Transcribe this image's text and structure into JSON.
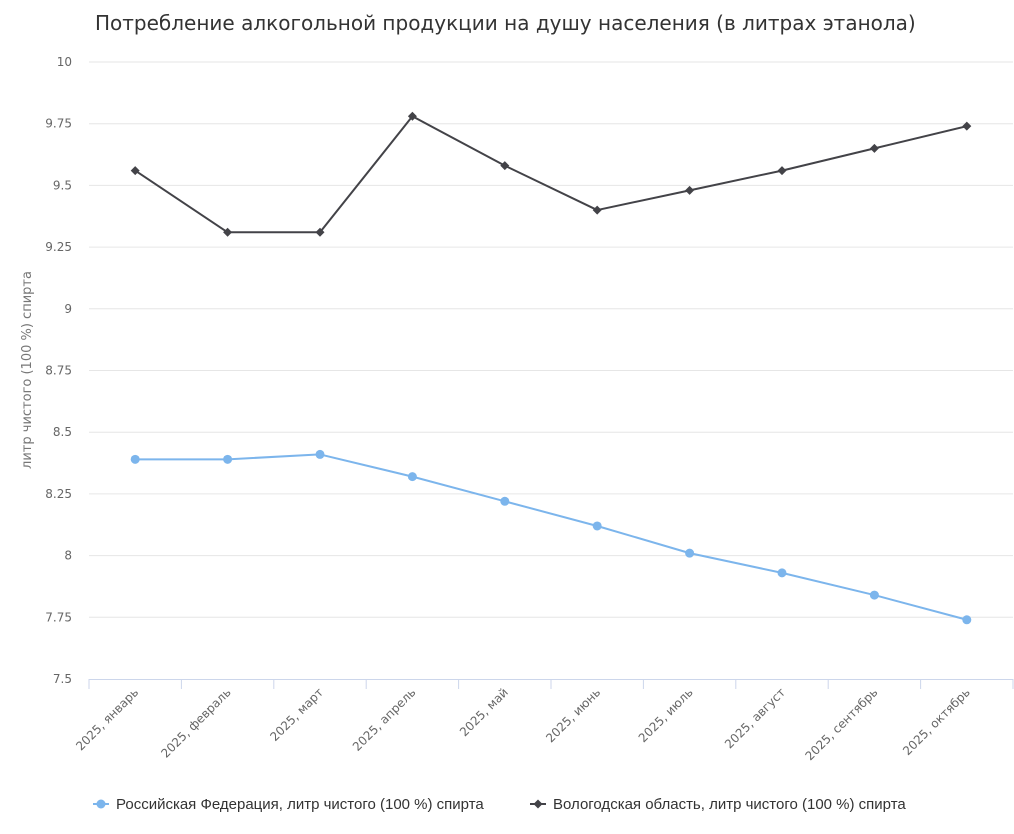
{
  "chart_data": {
    "type": "line",
    "title": "Потребление алкогольной продукции на душу населения (в литрах этанола)",
    "xlabel": "",
    "ylabel": "литр чистого (100 %) спирта",
    "ylim": [
      7.5,
      10
    ],
    "yticks": [
      "7.5",
      "7.75",
      "8",
      "8.25",
      "8.5",
      "8.75",
      "9",
      "9.25",
      "9.5",
      "9.75",
      "10"
    ],
    "categories": [
      "2025, январь",
      "2025, февраль",
      "2025, март",
      "2025, апрель",
      "2025, май",
      "2025, июнь",
      "2025, июль",
      "2025, август",
      "2025, сентябрь",
      "2025, октябрь"
    ],
    "series": [
      {
        "name": "Российская Федерация, литр чистого (100 %) спирта",
        "color": "#7cb5ec",
        "marker": "circle",
        "values": [
          8.39,
          8.39,
          8.41,
          8.32,
          8.22,
          8.12,
          8.01,
          7.93,
          7.84,
          7.74
        ]
      },
      {
        "name": "Вологодская область, литр чистого (100 %) спирта",
        "color": "#434348",
        "marker": "diamond",
        "values": [
          9.56,
          9.31,
          9.31,
          9.78,
          9.58,
          9.4,
          9.48,
          9.56,
          9.65,
          9.74
        ]
      }
    ],
    "legend": "bottom-left"
  }
}
